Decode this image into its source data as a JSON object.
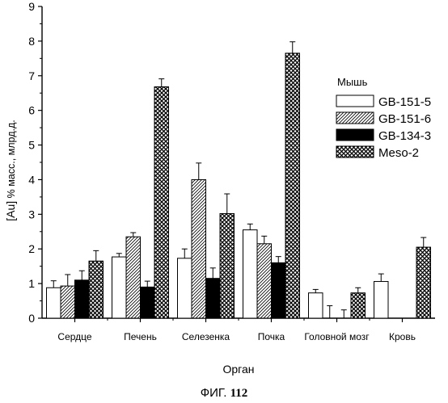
{
  "chart_data": {
    "type": "bar",
    "xlabel": "Орган",
    "ylabel_main": "[Au]",
    "ylabel_unit": "% масс., млрд.д.",
    "ylim": [
      0,
      9
    ],
    "yticks": [
      0,
      1,
      2,
      3,
      4,
      5,
      6,
      7,
      8,
      9
    ],
    "grid": false,
    "legend_title": "Мышь",
    "legend_position": "right",
    "categories": [
      "Сердце",
      "Печень",
      "Селезенка",
      "Почка",
      "Головной мозг",
      "Кровь"
    ],
    "series": [
      {
        "name": "GB-151-5",
        "fill": "white",
        "values": [
          0.88,
          1.77,
          1.73,
          2.55,
          0.73,
          1.06
        ],
        "errors": [
          0.2,
          0.1,
          0.27,
          0.17,
          0.1,
          0.22
        ]
      },
      {
        "name": "GB-151-6",
        "fill": "hatch",
        "values": [
          0.93,
          2.35,
          4.0,
          2.15,
          0.0,
          0.0
        ],
        "errors": [
          0.33,
          0.12,
          0.48,
          0.22,
          0.36,
          0
        ]
      },
      {
        "name": "GB-134-3",
        "fill": "black",
        "values": [
          1.1,
          0.9,
          1.15,
          1.6,
          0.0,
          0.0
        ],
        "errors": [
          0.27,
          0.17,
          0.3,
          0.18,
          0.24,
          0
        ]
      },
      {
        "name": "Meso-2",
        "fill": "crosshatch",
        "values": [
          1.65,
          6.68,
          3.02,
          7.65,
          0.73,
          2.05
        ],
        "errors": [
          0.3,
          0.23,
          0.57,
          0.33,
          0.15,
          0.28
        ]
      }
    ]
  },
  "caption": {
    "prefix": "ФИГ.",
    "number": "112"
  },
  "colors": {
    "axis": "#000000",
    "bar_stroke": "#000000",
    "background": "#ffffff"
  }
}
